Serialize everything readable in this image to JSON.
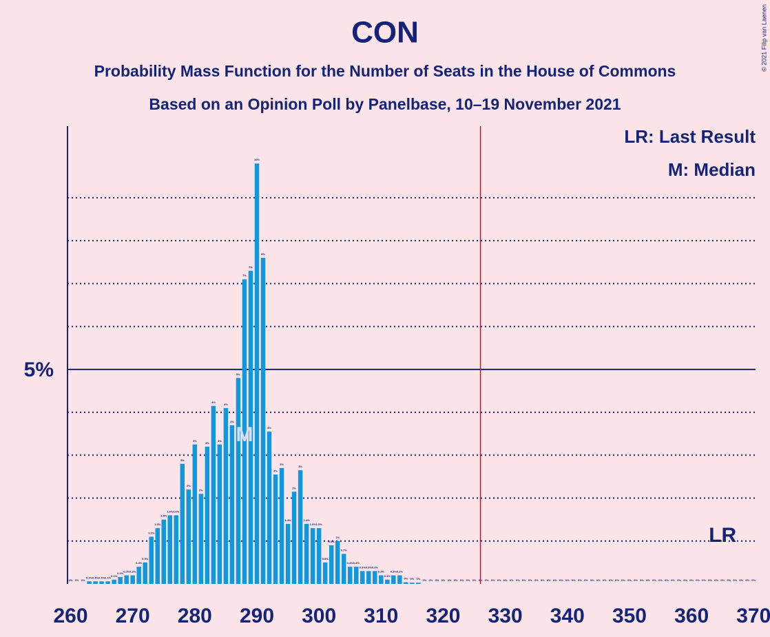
{
  "chart_data": {
    "type": "bar",
    "title": "CON",
    "subtitle": "Probability Mass Function for the Number of Seats in the House of Commons",
    "subtitle2": "Based on an Opinion Poll by Panelbase, 10–19 November 2021",
    "copyright": "© 2021 Filip van Laenen",
    "legend": [
      "LR: Last Result",
      "M: Median"
    ],
    "color": "#0f98dc",
    "x": [
      260,
      261,
      262,
      263,
      264,
      265,
      266,
      267,
      268,
      269,
      270,
      271,
      272,
      273,
      274,
      275,
      276,
      277,
      278,
      279,
      280,
      281,
      282,
      283,
      284,
      285,
      286,
      287,
      288,
      289,
      290,
      291,
      292,
      293,
      294,
      295,
      296,
      297,
      298,
      299,
      300,
      301,
      302,
      303,
      304,
      305,
      306,
      307,
      308,
      309,
      310,
      311,
      312,
      313,
      314,
      315,
      316,
      317,
      318,
      319,
      320,
      321,
      322,
      323,
      324,
      325,
      326,
      327,
      328,
      329,
      330,
      331,
      332,
      333,
      334,
      335,
      336,
      337,
      338,
      339,
      340,
      341,
      342,
      343,
      344,
      345,
      346,
      347,
      348,
      349,
      350,
      351,
      352,
      353,
      354,
      355,
      356,
      357,
      358,
      359,
      360,
      361,
      362,
      363,
      364,
      365,
      366,
      367,
      368,
      369,
      370
    ],
    "values": [
      0,
      0,
      0,
      0.06,
      0.06,
      0.06,
      0.06,
      0.1,
      0.16,
      0.2,
      0.2,
      0.4,
      0.5,
      1.1,
      1.3,
      1.5,
      1.6,
      1.6,
      2.8,
      2.2,
      3.25,
      2.1,
      3.2,
      4.15,
      3.25,
      4.1,
      3.7,
      4.8,
      7.1,
      7.3,
      9.8,
      7.6,
      3.55,
      2.55,
      2.7,
      1.4,
      2.15,
      2.65,
      1.4,
      1.3,
      1.3,
      0.5,
      0.9,
      1,
      0.7,
      0.4,
      0.4,
      0.3,
      0.3,
      0.3,
      0.2,
      0.1,
      0.2,
      0.2,
      0.04,
      0.03,
      0.03,
      0,
      0,
      0,
      0,
      0,
      0,
      0,
      0,
      0,
      0,
      0,
      0,
      0,
      0,
      0,
      0,
      0,
      0,
      0,
      0,
      0,
      0,
      0,
      0,
      0,
      0,
      0,
      0,
      0,
      0,
      0,
      0,
      0,
      0,
      0,
      0,
      0,
      0,
      0,
      0,
      0,
      0,
      0,
      0,
      0,
      0,
      0,
      0,
      0,
      0,
      0,
      0,
      0,
      0
    ],
    "value_labels": [
      "0%",
      "0%",
      "0%",
      "0.1%",
      "0.1%",
      "0.1%",
      "0.1%",
      "0.1%",
      "0.2%",
      "0.2%",
      "0.2%",
      "0.4%",
      "0.5%",
      "1.1%",
      "1.3%",
      "1.5%",
      "1.6%",
      "1.6%",
      "3%",
      "2%",
      "3%",
      "2%",
      "3%",
      "4%",
      "3%",
      "4%",
      "4%",
      "5%",
      "7%",
      "7%",
      "10%",
      "8%",
      "4%",
      "3%",
      "3%",
      "1.4%",
      "2%",
      "3%",
      "1.4%",
      "1.3%",
      "1.3%",
      "0.5%",
      "0.9%",
      "1%",
      "0.7%",
      "0.4%",
      "0.4%",
      "0.3%",
      "0.3%",
      "0.3%",
      "0.2%",
      "0.1%",
      "0.2%",
      "0.2%",
      "0%",
      "0%",
      "0%",
      "0%",
      "0%",
      "0%",
      "0%",
      "0%",
      "0%",
      "0%",
      "0%",
      "0%",
      "0%",
      "0%",
      "0%",
      "0%",
      "0%",
      "0%",
      "0%",
      "0%",
      "0%",
      "0%",
      "0%",
      "0%",
      "0%",
      "0%",
      "0%",
      "0%",
      "0%",
      "0%",
      "0%",
      "0%",
      "0%",
      "0%",
      "0%",
      "0%",
      "0%",
      "0%",
      "0%",
      "0%",
      "0%",
      "0%",
      "0%",
      "0%",
      "0%",
      "0%",
      "0%",
      "0%",
      "0%",
      "0%",
      "0%",
      "0%",
      "0%",
      "0%",
      "0%",
      "0%",
      "0%"
    ],
    "xlim": [
      259.5,
      370.3
    ],
    "xticks": [
      260,
      270,
      280,
      290,
      300,
      310,
      320,
      330,
      340,
      350,
      360,
      370
    ],
    "ylim": [
      0,
      10.67
    ],
    "yticks": [
      {
        "value": 5,
        "label": "5%"
      }
    ],
    "grid_lines": [
      1,
      2,
      3,
      4,
      6,
      7,
      8,
      9
    ],
    "majority": 326,
    "median": 288,
    "median_label": "M",
    "last_result": 365,
    "last_result_label": "LR"
  }
}
